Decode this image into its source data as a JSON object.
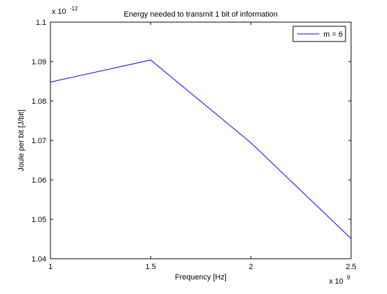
{
  "chart_data": {
    "type": "line",
    "title": "Energy needed to transmit 1 bit of information",
    "xlabel": "Frequency [Hz]",
    "ylabel": "Joule per bit [J/bit]",
    "x_multiplier": {
      "base": "x 10",
      "exponent": "9"
    },
    "y_multiplier": {
      "base": "x 10",
      "exponent": "-12"
    },
    "xlim": [
      1,
      2.5
    ],
    "ylim": [
      1.04,
      1.1
    ],
    "x_ticks": [
      1,
      1.5,
      2,
      2.5
    ],
    "x_tick_labels": [
      "1",
      "1.5",
      "2",
      "2.5"
    ],
    "y_ticks": [
      1.04,
      1.05,
      1.06,
      1.07,
      1.08,
      1.09,
      1.1
    ],
    "y_tick_labels": [
      "1.04",
      "1.05",
      "1.06",
      "1.07",
      "1.08",
      "1.09",
      "1.1"
    ],
    "grid": false,
    "legend_position": "top-right",
    "series": [
      {
        "name": "m = 6",
        "color": "#0000ff",
        "x": [
          1,
          1.5,
          2,
          2.5
        ],
        "y": [
          1.0848,
          1.0904,
          1.0694,
          1.0451
        ]
      }
    ]
  }
}
